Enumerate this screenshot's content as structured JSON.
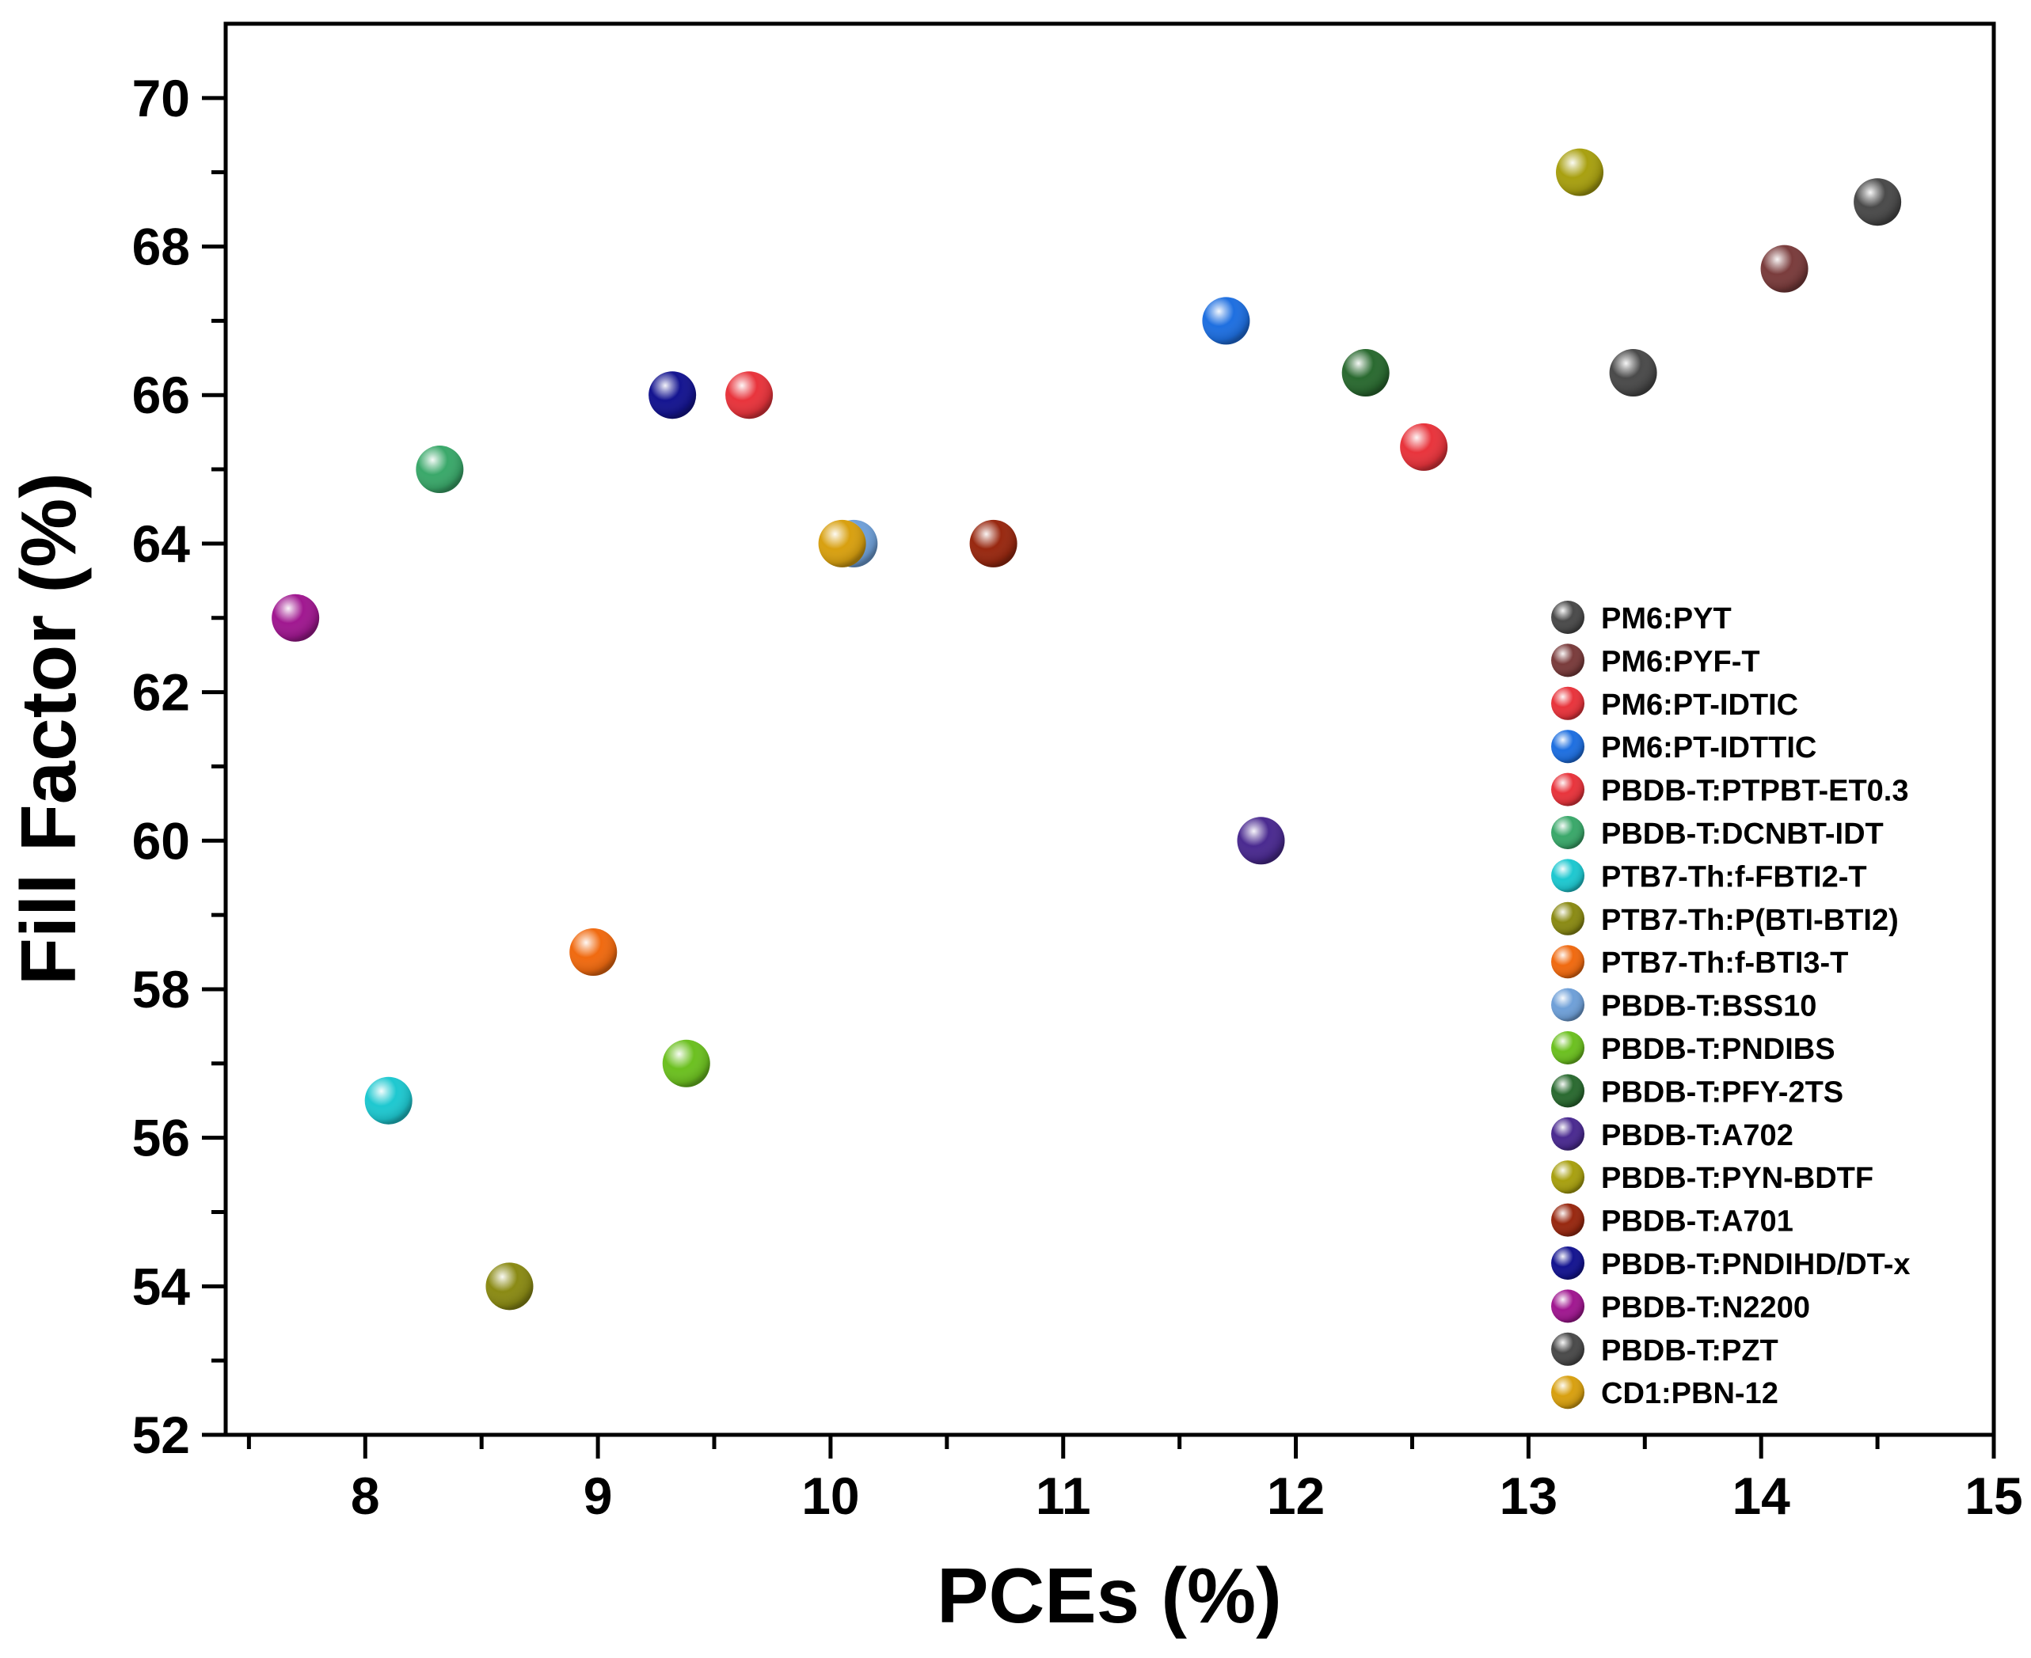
{
  "chart_data": {
    "type": "scatter",
    "title": "",
    "xlabel": "PCEs (%)",
    "ylabel": "Fill Factor (%)",
    "xlim": [
      7.4,
      15
    ],
    "ylim": [
      52,
      71
    ],
    "x_ticks": [
      8,
      9,
      10,
      11,
      12,
      13,
      14,
      15
    ],
    "y_ticks": [
      52,
      54,
      56,
      58,
      60,
      62,
      64,
      66,
      68,
      70
    ],
    "legend_position": "right",
    "series": [
      {
        "name": "PM6:PYT",
        "color": "#4a4a4a",
        "x": 14.5,
        "y": 68.6
      },
      {
        "name": "PM6:PYF-T",
        "color": "#7a3c3c",
        "x": 14.1,
        "y": 67.7
      },
      {
        "name": "PM6:PT-IDTIC",
        "color": "#e8343c",
        "x": 9.65,
        "y": 66.0
      },
      {
        "name": "PM6:PT-IDTTIC",
        "color": "#1e6fe0",
        "x": 11.7,
        "y": 67.0
      },
      {
        "name": "PBDB-T:PTPBT-ET0.3",
        "color": "#e8343c",
        "x": 12.55,
        "y": 65.3
      },
      {
        "name": "PBDB-T:DCNBT-IDT",
        "color": "#3aa86a",
        "x": 8.32,
        "y": 65.0
      },
      {
        "name": "PTB7-Th:f-FBTI2-T",
        "color": "#1ec8d0",
        "x": 8.1,
        "y": 56.5
      },
      {
        "name": "PTB7-Th:P(BTI-BTI2)",
        "color": "#8a8a14",
        "x": 8.62,
        "y": 54.0
      },
      {
        "name": "PTB7-Th:f-BTI3-T",
        "color": "#f06a10",
        "x": 8.98,
        "y": 58.5
      },
      {
        "name": "PBDB-T:BSS10",
        "color": "#6fa0d8",
        "x": 10.1,
        "y": 64.0
      },
      {
        "name": "PBDB-T:PNDIBS",
        "color": "#6cc020",
        "x": 9.38,
        "y": 57.0
      },
      {
        "name": "PBDB-T:PFY-2TS",
        "color": "#2a6a30",
        "x": 12.3,
        "y": 66.3
      },
      {
        "name": "PBDB-T:A702",
        "color": "#4a2a90",
        "x": 11.85,
        "y": 60.0
      },
      {
        "name": "PBDB-T:PYN-BDTF",
        "color": "#a8a010",
        "x": 13.22,
        "y": 69.0
      },
      {
        "name": "PBDB-T:A701",
        "color": "#982810",
        "x": 10.7,
        "y": 64.0
      },
      {
        "name": "PBDB-T:PNDIHD/DT-x",
        "color": "#141490",
        "x": 9.32,
        "y": 66.0
      },
      {
        "name": "PBDB-T:N2200",
        "color": "#a01890",
        "x": 7.7,
        "y": 63.0
      },
      {
        "name": "PBDB-T:PZT",
        "color": "#4a4a4a",
        "x": 13.45,
        "y": 66.3
      },
      {
        "name": "CD1:PBN-12",
        "color": "#d8a010",
        "x": 10.05,
        "y": 64.0
      }
    ]
  }
}
